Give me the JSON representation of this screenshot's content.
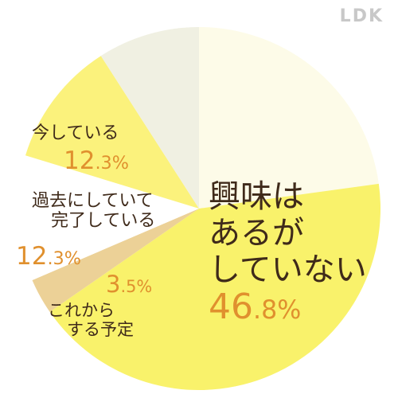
{
  "brand": "LDK",
  "chart_data": {
    "type": "pie",
    "start_angle_deg": 0,
    "direction": "clockwise",
    "slices": [
      {
        "label": "",
        "value": 25.1,
        "color": "#fdfbe8"
      },
      {
        "label": "興味はあるがしていない",
        "label_lines": [
          "興味は",
          "あるが",
          "していない"
        ],
        "value": 46.8,
        "int": "46",
        "dec": ".8%",
        "color": "#f9f26b"
      },
      {
        "label": "これからする予定",
        "label_lines": [
          "これから",
          "する予定"
        ],
        "value": 3.5,
        "int": "3",
        "dec": ".5%",
        "color": "#ecd197"
      },
      {
        "label": "過去にしていて完了している",
        "label_lines": [
          "過去にしていて",
          "完了している"
        ],
        "value": 12.3,
        "int": "12",
        "dec": ".3%",
        "color": "#ffffff"
      },
      {
        "label": "今している",
        "label_lines": [
          "今している"
        ],
        "value": 12.3,
        "int": "12",
        "dec": ".3%",
        "color": "#fbf27c"
      },
      {
        "label": "",
        "value": 10.0,
        "color": "#f0f0e2"
      }
    ],
    "text_color": "#3f2a1a",
    "percent_color": "#e0902e"
  }
}
